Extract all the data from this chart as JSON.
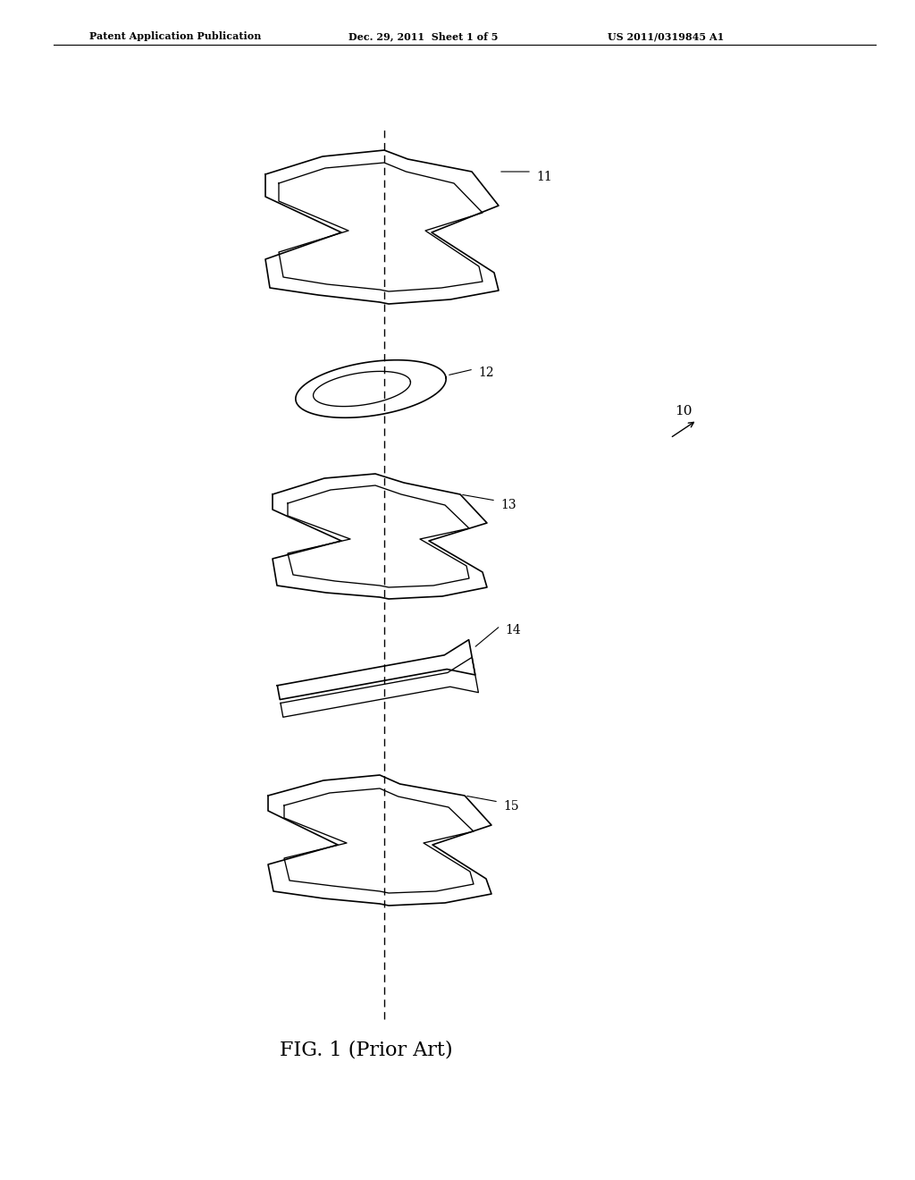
{
  "title": "FIG. 1 (Prior Art)",
  "header_left": "Patent Application Publication",
  "header_center": "Dec. 29, 2011  Sheet 1 of 5",
  "header_right": "US 2011/0319845 A1",
  "background_color": "#ffffff",
  "line_color": "#000000",
  "dashed_line_color": "#000000",
  "label_10": "10",
  "label_11": "11",
  "label_12": "12",
  "label_13": "13",
  "label_14": "14",
  "label_15": "15"
}
